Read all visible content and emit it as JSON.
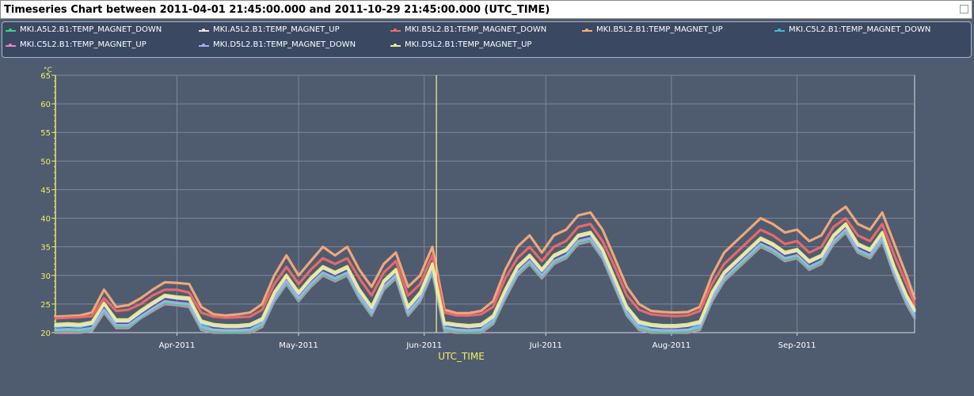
{
  "window": {
    "title": "Timeseries Chart between 2011-04-01 21:45:00.000 and 2011-10-29 21:45:00.000 (UTC_TIME)"
  },
  "legend": {
    "items": [
      {
        "label": "MKI.A5L2.B1:TEMP_MAGNET_DOWN",
        "color": "#3fd07e"
      },
      {
        "label": "MKI.A5L2.B1:TEMP_MAGNET_UP",
        "color": "#e6e6e6"
      },
      {
        "label": "MKI.B5L2.B1:TEMP_MAGNET_DOWN",
        "color": "#f06a6a"
      },
      {
        "label": "MKI.B5L2.B1:TEMP_MAGNET_UP",
        "color": "#f7ac7a"
      },
      {
        "label": "MKI.C5L2.B1:TEMP_MAGNET_DOWN",
        "color": "#3fbccc"
      },
      {
        "label": "MKI.C5L2.B1:TEMP_MAGNET_UP",
        "color": "#e884c4"
      },
      {
        "label": "MKI.D5L2.B1:TEMP_MAGNET_DOWN",
        "color": "#9fb2ee"
      },
      {
        "label": "MKI.D5L2.B1:TEMP_MAGNET_UP",
        "color": "#ecec90"
      }
    ]
  },
  "chart_data": {
    "type": "line",
    "title": "Timeseries Chart between 2011-04-01 21:45:00.000 and 2011-10-29 21:45:00.000 (UTC_TIME)",
    "xlabel": "UTC_TIME",
    "ylabel": "°C",
    "ylim": [
      20,
      65
    ],
    "yticks": [
      "20",
      "25",
      "30",
      "35",
      "40",
      "45",
      "50",
      "55",
      "60",
      "65"
    ],
    "xticks": [
      "Apr-2011",
      "May-2011",
      "Jun-2011",
      "Jul-2011",
      "Aug-2011",
      "Sep-2011"
    ],
    "xrange_days": [
      0,
      212
    ],
    "xtick_days": [
      30,
      60,
      91,
      121,
      152,
      183
    ],
    "cursor_day": 94,
    "grid": true,
    "legend_position": "top",
    "x_days": [
      0,
      3,
      6,
      9,
      12,
      15,
      18,
      21,
      24,
      27,
      30,
      33,
      36,
      39,
      42,
      45,
      48,
      51,
      54,
      57,
      60,
      63,
      66,
      69,
      72,
      75,
      78,
      81,
      84,
      87,
      90,
      93,
      96,
      99,
      102,
      105,
      108,
      111,
      114,
      117,
      120,
      123,
      126,
      129,
      132,
      135,
      138,
      141,
      144,
      147,
      150,
      153,
      156,
      159,
      162,
      165,
      168,
      171,
      174,
      177,
      180,
      183,
      186,
      189,
      192,
      195,
      198,
      201,
      204,
      207,
      210,
      212
    ],
    "series": [
      {
        "name": "MKI.B5L2.B1:TEMP_MAGNET_UP",
        "color": "#f7ac7a",
        "values": [
          22.8,
          22.9,
          23.0,
          23.5,
          27.5,
          24.5,
          24.8,
          26.0,
          27.5,
          28.8,
          28.7,
          28.5,
          24.5,
          23.2,
          23.0,
          23.2,
          23.5,
          25.0,
          30.0,
          33.5,
          30.0,
          32.5,
          35.0,
          33.5,
          35.0,
          31.0,
          28.0,
          32.0,
          34.0,
          28.0,
          30.0,
          35.0,
          24.0,
          23.4,
          23.4,
          23.8,
          25.5,
          31.0,
          35.0,
          37.0,
          34.0,
          37.0,
          38.0,
          40.5,
          41.0,
          38.0,
          33.0,
          28.0,
          25.0,
          23.8,
          23.6,
          23.5,
          23.6,
          24.5,
          30.0,
          34.0,
          36.0,
          38.0,
          40.0,
          39.0,
          37.5,
          38.0,
          36.0,
          37.0,
          40.5,
          42.0,
          39.0,
          38.0,
          41.0,
          35.5,
          30.0,
          26.0
        ]
      },
      {
        "name": "MKI.B5L2.B1:TEMP_MAGNET_DOWN",
        "color": "#f06a6a",
        "values": [
          22.5,
          22.6,
          22.7,
          22.9,
          26.0,
          23.8,
          24.0,
          25.0,
          26.5,
          27.5,
          27.5,
          27.0,
          23.5,
          22.8,
          22.6,
          22.7,
          22.8,
          24.0,
          28.5,
          31.5,
          28.5,
          31.0,
          33.0,
          32.0,
          33.0,
          29.5,
          26.5,
          30.5,
          32.5,
          26.5,
          28.5,
          33.5,
          23.5,
          23.0,
          23.0,
          23.2,
          24.5,
          29.5,
          33.0,
          35.0,
          32.5,
          35.0,
          36.0,
          38.5,
          39.0,
          36.0,
          31.5,
          26.5,
          24.0,
          23.2,
          23.0,
          22.9,
          23.0,
          23.8,
          28.5,
          32.0,
          34.0,
          36.0,
          38.0,
          37.0,
          35.5,
          36.0,
          34.0,
          35.0,
          38.5,
          40.0,
          37.0,
          36.0,
          39.0,
          33.5,
          28.5,
          25.0
        ]
      },
      {
        "name": "MKI.C5L2.B1:TEMP_MAGNET_DOWN",
        "color": "#3fbccc",
        "values": [
          21.0,
          21.2,
          21.0,
          21.5,
          25.0,
          22.0,
          22.0,
          23.5,
          25.0,
          26.5,
          26.0,
          26.0,
          21.5,
          20.4,
          20.3,
          20.3,
          20.4,
          22.0,
          27.0,
          30.0,
          27.0,
          29.5,
          31.5,
          30.5,
          31.5,
          27.5,
          24.5,
          29.0,
          31.0,
          24.5,
          27.0,
          32.0,
          21.0,
          20.5,
          20.3,
          20.5,
          22.5,
          27.5,
          31.5,
          33.5,
          31.0,
          33.5,
          34.5,
          37.0,
          37.5,
          34.5,
          29.5,
          24.5,
          21.5,
          20.5,
          20.4,
          20.3,
          20.4,
          21.5,
          27.0,
          30.5,
          32.5,
          34.5,
          36.5,
          35.5,
          34.0,
          34.5,
          32.5,
          33.5,
          37.0,
          39.0,
          35.5,
          34.5,
          37.5,
          31.5,
          26.5,
          23.5
        ]
      },
      {
        "name": "MKI.C5L2.B1:TEMP_MAGNET_UP",
        "color": "#e884c4",
        "values": [
          20.0,
          20.0,
          20.0,
          20.3,
          23.5,
          20.8,
          20.8,
          22.5,
          23.8,
          25.0,
          24.8,
          24.5,
          20.5,
          20.0,
          20.0,
          20.0,
          20.0,
          21.0,
          25.5,
          28.5,
          25.5,
          28.0,
          30.0,
          29.0,
          30.0,
          26.0,
          23.0,
          27.5,
          29.5,
          23.0,
          25.5,
          30.5,
          20.3,
          20.0,
          20.0,
          20.0,
          21.5,
          26.0,
          30.0,
          32.0,
          29.5,
          32.0,
          33.0,
          35.5,
          36.0,
          33.0,
          28.0,
          23.0,
          20.5,
          20.0,
          20.0,
          20.0,
          20.0,
          20.5,
          25.5,
          29.0,
          31.0,
          33.0,
          35.0,
          34.0,
          32.5,
          33.0,
          31.0,
          32.0,
          35.5,
          37.5,
          34.0,
          33.0,
          36.0,
          30.0,
          25.0,
          22.5
        ]
      },
      {
        "name": "MKI.A5L2.B1:TEMP_MAGNET_DOWN",
        "color": "#3fd07e",
        "values": [
          20.2,
          20.3,
          20.2,
          20.5,
          23.8,
          21.0,
          21.0,
          22.6,
          24.0,
          25.2,
          25.0,
          24.7,
          20.7,
          20.2,
          20.1,
          20.1,
          20.2,
          21.2,
          25.7,
          28.7,
          25.7,
          28.2,
          30.2,
          29.2,
          30.2,
          26.2,
          23.2,
          27.7,
          29.7,
          23.2,
          25.7,
          30.7,
          20.5,
          20.2,
          20.1,
          20.2,
          21.7,
          26.2,
          30.2,
          32.2,
          29.7,
          32.2,
          33.2,
          35.7,
          36.2,
          33.2,
          28.2,
          23.2,
          20.7,
          20.2,
          20.1,
          20.1,
          20.2,
          20.7,
          25.7,
          29.2,
          31.2,
          33.2,
          35.2,
          34.2,
          32.7,
          33.2,
          31.2,
          32.2,
          35.7,
          37.7,
          34.2,
          33.2,
          36.2,
          30.2,
          25.2,
          22.7
        ]
      },
      {
        "name": "MKI.D5L2.B1:TEMP_MAGNET_DOWN",
        "color": "#9fb2ee",
        "values": [
          20.5,
          20.6,
          20.5,
          20.8,
          24.0,
          21.3,
          21.3,
          22.8,
          24.2,
          25.5,
          25.2,
          25.0,
          21.0,
          20.5,
          20.4,
          20.4,
          20.5,
          21.5,
          26.0,
          29.0,
          26.0,
          28.5,
          30.5,
          29.5,
          30.5,
          26.5,
          23.5,
          28.0,
          30.0,
          23.5,
          26.0,
          31.0,
          20.8,
          20.5,
          20.4,
          20.5,
          22.0,
          26.5,
          30.5,
          32.5,
          30.0,
          32.5,
          33.5,
          36.0,
          36.5,
          33.5,
          28.5,
          23.5,
          21.0,
          20.5,
          20.4,
          20.4,
          20.5,
          21.0,
          26.0,
          29.5,
          31.5,
          33.5,
          35.5,
          34.5,
          33.0,
          33.5,
          31.5,
          32.5,
          36.0,
          38.0,
          34.5,
          33.5,
          36.5,
          30.5,
          25.5,
          23.0
        ]
      },
      {
        "name": "MKI.A5L2.B1:TEMP_MAGNET_UP",
        "color": "#e6e6e6",
        "values": [
          21.2,
          21.3,
          21.2,
          21.6,
          25.0,
          22.0,
          22.0,
          23.6,
          25.0,
          26.3,
          26.0,
          25.8,
          21.8,
          21.2,
          21.0,
          21.0,
          21.2,
          22.2,
          26.8,
          29.8,
          26.8,
          29.3,
          31.3,
          30.3,
          31.3,
          27.3,
          24.3,
          28.8,
          30.8,
          24.3,
          26.8,
          31.8,
          21.5,
          21.2,
          21.0,
          21.2,
          22.7,
          27.3,
          31.3,
          33.3,
          30.8,
          33.3,
          34.3,
          36.8,
          37.3,
          34.3,
          29.3,
          24.3,
          21.7,
          21.2,
          21.0,
          21.0,
          21.2,
          21.7,
          26.8,
          30.3,
          32.3,
          34.3,
          36.3,
          35.3,
          33.8,
          34.3,
          32.3,
          33.3,
          36.8,
          38.8,
          35.3,
          34.3,
          37.3,
          31.3,
          26.3,
          23.8
        ]
      },
      {
        "name": "MKI.D5L2.B1:TEMP_MAGNET_UP",
        "color": "#ecec90",
        "values": [
          21.5,
          21.6,
          21.5,
          21.9,
          25.2,
          22.3,
          22.3,
          23.9,
          25.3,
          26.6,
          26.3,
          26.1,
          22.1,
          21.5,
          21.3,
          21.3,
          21.5,
          22.5,
          27.1,
          30.1,
          27.1,
          29.6,
          31.6,
          30.6,
          31.6,
          27.6,
          24.6,
          29.1,
          31.1,
          24.6,
          27.1,
          32.1,
          21.8,
          21.5,
          21.3,
          21.5,
          23.0,
          27.6,
          31.6,
          33.6,
          31.1,
          33.6,
          34.6,
          37.1,
          37.6,
          34.6,
          29.6,
          24.6,
          22.0,
          21.5,
          21.3,
          21.3,
          21.5,
          22.0,
          27.1,
          30.6,
          32.6,
          34.6,
          36.6,
          35.6,
          34.1,
          34.6,
          32.6,
          33.6,
          37.1,
          39.1,
          35.6,
          34.6,
          37.6,
          31.6,
          26.6,
          24.1
        ]
      }
    ]
  }
}
